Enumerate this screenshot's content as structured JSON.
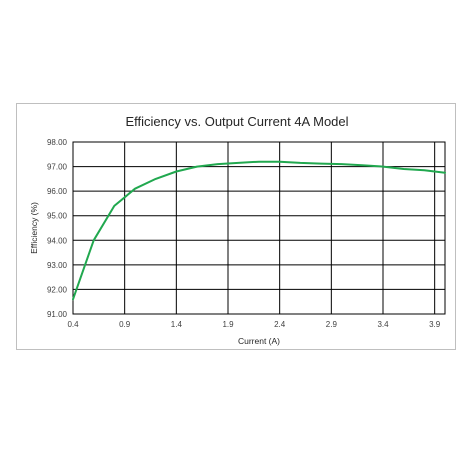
{
  "chart_data": {
    "type": "line",
    "title": "Efficiency vs. Output Current 4A Model",
    "xlabel": "Current (A)",
    "ylabel": "Efficiency (%)",
    "xlim": [
      0.4,
      4.0
    ],
    "ylim": [
      91.0,
      98.0
    ],
    "x_ticks": [
      "0.4",
      "0.9",
      "1.4",
      "1.9",
      "2.4",
      "2.9",
      "3.4",
      "3.9"
    ],
    "y_ticks": [
      "91.00",
      "92.00",
      "93.00",
      "94.00",
      "95.00",
      "96.00",
      "97.00",
      "98.00"
    ],
    "grid": true,
    "series": [
      {
        "color": "#21a84f",
        "x": [
          0.4,
          0.6,
          0.8,
          1.0,
          1.2,
          1.4,
          1.6,
          1.8,
          2.0,
          2.2,
          2.4,
          2.6,
          2.8,
          3.0,
          3.2,
          3.4,
          3.6,
          3.8,
          4.0
        ],
        "y": [
          91.6,
          94.0,
          95.4,
          96.1,
          96.5,
          96.8,
          97.0,
          97.1,
          97.15,
          97.2,
          97.2,
          97.15,
          97.12,
          97.1,
          97.05,
          97.0,
          96.9,
          96.85,
          96.75
        ]
      }
    ]
  }
}
